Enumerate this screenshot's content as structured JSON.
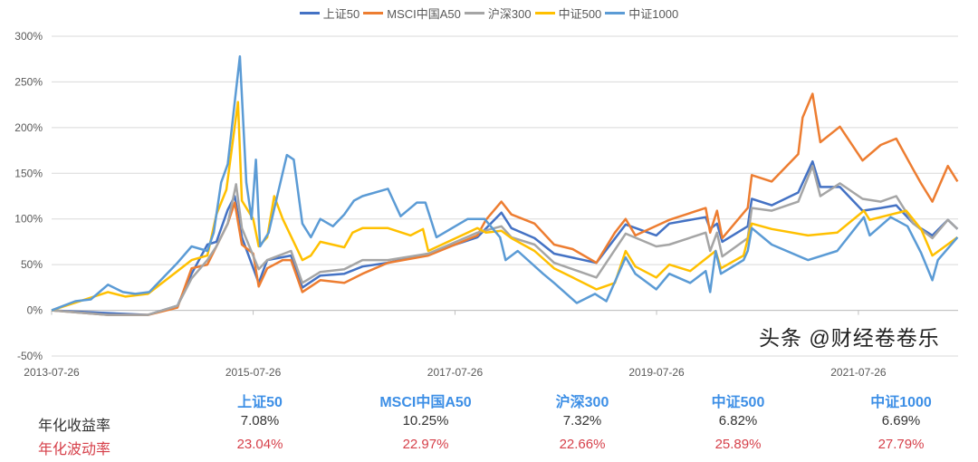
{
  "chart_data": {
    "type": "line",
    "ylim": [
      -50,
      300
    ],
    "yticks": [
      -50,
      0,
      50,
      100,
      150,
      200,
      250,
      300
    ],
    "ytick_labels": [
      "-50%",
      "0%",
      "50%",
      "100%",
      "150%",
      "200%",
      "250%",
      "300%"
    ],
    "xlim": [
      "2013-07-26",
      "2022-07-22"
    ],
    "xtick_labels": [
      "2013-07-26",
      "2015-07-26",
      "2017-07-26",
      "2019-07-26",
      "2021-07-26"
    ],
    "grid": true,
    "legend_placement": "top",
    "series": [
      {
        "name": "上证50",
        "color": "#4472C4",
        "points": [
          [
            "2013-07-26",
            0
          ],
          [
            "2014-02-15",
            -3
          ],
          [
            "2014-07-10",
            -5
          ],
          [
            "2014-10-25",
            5
          ],
          [
            "2014-12-15",
            40
          ],
          [
            "2015-02-10",
            72
          ],
          [
            "2015-03-15",
            75
          ],
          [
            "2015-04-25",
            110
          ],
          [
            "2015-05-20",
            125
          ],
          [
            "2015-06-15",
            80
          ],
          [
            "2015-08-15",
            30
          ],
          [
            "2015-09-15",
            55
          ],
          [
            "2015-12-10",
            60
          ],
          [
            "2016-01-20",
            25
          ],
          [
            "2016-03-25",
            38
          ],
          [
            "2016-06-20",
            40
          ],
          [
            "2016-08-25",
            48
          ],
          [
            "2016-11-25",
            52
          ],
          [
            "2017-04-20",
            62
          ],
          [
            "2017-10-15",
            80
          ],
          [
            "2018-01-10",
            107
          ],
          [
            "2018-02-15",
            90
          ],
          [
            "2018-05-10",
            79
          ],
          [
            "2018-07-20",
            62
          ],
          [
            "2018-12-20",
            52
          ],
          [
            "2019-04-05",
            94
          ],
          [
            "2019-07-25",
            82
          ],
          [
            "2019-09-10",
            95
          ],
          [
            "2020-01-20",
            102
          ],
          [
            "2020-02-05",
            89
          ],
          [
            "2020-03-01",
            95
          ],
          [
            "2020-03-20",
            75
          ],
          [
            "2020-06-20",
            92
          ],
          [
            "2020-07-05",
            122
          ],
          [
            "2020-09-15",
            115
          ],
          [
            "2020-12-20",
            129
          ],
          [
            "2021-02-10",
            163
          ],
          [
            "2021-03-10",
            135
          ],
          [
            "2021-05-20",
            135
          ],
          [
            "2021-08-10",
            109
          ],
          [
            "2021-10-15",
            112
          ],
          [
            "2021-12-10",
            115
          ],
          [
            "2022-02-10",
            95
          ],
          [
            "2022-04-20",
            82
          ],
          [
            "2022-06-15",
            99
          ],
          [
            "2022-07-20",
            89
          ]
        ]
      },
      {
        "name": "MSCI中国A50",
        "color": "#ED7D31",
        "points": [
          [
            "2013-07-26",
            0
          ],
          [
            "2014-02-15",
            -5
          ],
          [
            "2014-07-10",
            -5
          ],
          [
            "2014-10-25",
            3
          ],
          [
            "2014-12-15",
            46
          ],
          [
            "2015-02-10",
            50
          ],
          [
            "2015-03-15",
            70
          ],
          [
            "2015-04-25",
            95
          ],
          [
            "2015-05-20",
            118
          ],
          [
            "2015-06-15",
            72
          ],
          [
            "2015-07-26",
            62
          ],
          [
            "2015-08-15",
            26
          ],
          [
            "2015-09-15",
            46
          ],
          [
            "2015-11-10",
            55
          ],
          [
            "2015-12-10",
            55
          ],
          [
            "2016-01-20",
            20
          ],
          [
            "2016-03-25",
            33
          ],
          [
            "2016-06-20",
            30
          ],
          [
            "2016-08-25",
            40
          ],
          [
            "2016-11-25",
            52
          ],
          [
            "2017-04-20",
            60
          ],
          [
            "2017-10-15",
            82
          ],
          [
            "2017-11-15",
            99
          ],
          [
            "2018-01-10",
            119
          ],
          [
            "2018-02-15",
            105
          ],
          [
            "2018-05-10",
            95
          ],
          [
            "2018-07-20",
            72
          ],
          [
            "2018-09-25",
            67
          ],
          [
            "2018-12-20",
            52
          ],
          [
            "2019-02-25",
            85
          ],
          [
            "2019-04-05",
            100
          ],
          [
            "2019-05-10",
            82
          ],
          [
            "2019-09-10",
            99
          ],
          [
            "2020-01-20",
            112
          ],
          [
            "2020-02-05",
            85
          ],
          [
            "2020-03-01",
            109
          ],
          [
            "2020-03-20",
            79
          ],
          [
            "2020-06-20",
            112
          ],
          [
            "2020-07-05",
            148
          ],
          [
            "2020-09-15",
            141
          ],
          [
            "2020-12-20",
            171
          ],
          [
            "2021-01-05",
            211
          ],
          [
            "2021-02-10",
            237
          ],
          [
            "2021-03-10",
            184
          ],
          [
            "2021-05-20",
            201
          ],
          [
            "2021-08-10",
            164
          ],
          [
            "2021-10-15",
            181
          ],
          [
            "2021-12-10",
            188
          ],
          [
            "2022-02-10",
            154
          ],
          [
            "2022-03-10",
            139
          ],
          [
            "2022-04-20",
            119
          ],
          [
            "2022-06-15",
            158
          ],
          [
            "2022-07-20",
            141
          ]
        ]
      },
      {
        "name": "沪深300",
        "color": "#A5A5A5",
        "points": [
          [
            "2013-07-26",
            0
          ],
          [
            "2014-02-15",
            -5
          ],
          [
            "2014-07-10",
            -5
          ],
          [
            "2014-10-25",
            5
          ],
          [
            "2014-12-15",
            35
          ],
          [
            "2015-02-10",
            55
          ],
          [
            "2015-03-15",
            70
          ],
          [
            "2015-04-25",
            95
          ],
          [
            "2015-05-25",
            138
          ],
          [
            "2015-06-15",
            90
          ],
          [
            "2015-08-15",
            45
          ],
          [
            "2015-09-15",
            55
          ],
          [
            "2015-12-10",
            65
          ],
          [
            "2016-01-20",
            30
          ],
          [
            "2016-03-25",
            42
          ],
          [
            "2016-06-20",
            45
          ],
          [
            "2016-08-25",
            55
          ],
          [
            "2016-11-25",
            55
          ],
          [
            "2017-04-20",
            62
          ],
          [
            "2017-10-15",
            85
          ],
          [
            "2018-01-10",
            92
          ],
          [
            "2018-02-15",
            80
          ],
          [
            "2018-05-10",
            72
          ],
          [
            "2018-07-20",
            52
          ],
          [
            "2018-12-20",
            36
          ],
          [
            "2019-04-05",
            84
          ],
          [
            "2019-07-25",
            70
          ],
          [
            "2019-09-10",
            72
          ],
          [
            "2020-01-20",
            85
          ],
          [
            "2020-02-05",
            65
          ],
          [
            "2020-03-01",
            85
          ],
          [
            "2020-03-20",
            59
          ],
          [
            "2020-06-20",
            79
          ],
          [
            "2020-07-05",
            112
          ],
          [
            "2020-09-15",
            109
          ],
          [
            "2020-12-20",
            119
          ],
          [
            "2021-02-10",
            158
          ],
          [
            "2021-03-10",
            125
          ],
          [
            "2021-05-20",
            139
          ],
          [
            "2021-08-10",
            122
          ],
          [
            "2021-10-15",
            119
          ],
          [
            "2021-12-10",
            125
          ],
          [
            "2022-02-10",
            95
          ],
          [
            "2022-04-20",
            79
          ],
          [
            "2022-06-15",
            99
          ],
          [
            "2022-07-20",
            89
          ]
        ]
      },
      {
        "name": "中证500",
        "color": "#FFC000",
        "points": [
          [
            "2013-07-26",
            0
          ],
          [
            "2014-02-15",
            20
          ],
          [
            "2014-04-20",
            15
          ],
          [
            "2014-07-10",
            18
          ],
          [
            "2014-10-25",
            43
          ],
          [
            "2014-12-15",
            55
          ],
          [
            "2015-02-10",
            60
          ],
          [
            "2015-03-15",
            105
          ],
          [
            "2015-04-20",
            132
          ],
          [
            "2015-06-01",
            228
          ],
          [
            "2015-06-15",
            120
          ],
          [
            "2015-07-26",
            100
          ],
          [
            "2015-08-15",
            70
          ],
          [
            "2015-09-15",
            80
          ],
          [
            "2015-10-10",
            125
          ],
          [
            "2015-11-10",
            100
          ],
          [
            "2016-01-20",
            55
          ],
          [
            "2016-02-20",
            60
          ],
          [
            "2016-03-25",
            75
          ],
          [
            "2016-06-20",
            69
          ],
          [
            "2016-07-20",
            85
          ],
          [
            "2016-08-25",
            90
          ],
          [
            "2016-11-25",
            90
          ],
          [
            "2017-02-15",
            82
          ],
          [
            "2017-04-01",
            89
          ],
          [
            "2017-04-20",
            65
          ],
          [
            "2017-10-15",
            90
          ],
          [
            "2017-11-15",
            85
          ],
          [
            "2018-01-10",
            87
          ],
          [
            "2018-02-15",
            79
          ],
          [
            "2018-05-10",
            65
          ],
          [
            "2018-07-20",
            46
          ],
          [
            "2018-09-25",
            36
          ],
          [
            "2018-12-20",
            23
          ],
          [
            "2019-02-25",
            30
          ],
          [
            "2019-04-05",
            65
          ],
          [
            "2019-05-10",
            48
          ],
          [
            "2019-07-25",
            36
          ],
          [
            "2019-09-10",
            50
          ],
          [
            "2019-11-25",
            43
          ],
          [
            "2020-02-25",
            65
          ],
          [
            "2020-03-15",
            46
          ],
          [
            "2020-06-05",
            60
          ],
          [
            "2020-07-05",
            95
          ],
          [
            "2020-09-15",
            89
          ],
          [
            "2021-01-25",
            82
          ],
          [
            "2021-05-10",
            85
          ],
          [
            "2021-08-15",
            109
          ],
          [
            "2021-09-05",
            99
          ],
          [
            "2022-01-15",
            109
          ],
          [
            "2022-03-10",
            89
          ],
          [
            "2022-04-20",
            60
          ],
          [
            "2022-07-20",
            80
          ]
        ]
      },
      {
        "name": "中证1000",
        "color": "#5B9BD5",
        "points": [
          [
            "2013-07-26",
            0
          ],
          [
            "2013-10-20",
            10
          ],
          [
            "2013-12-15",
            12
          ],
          [
            "2014-02-15",
            28
          ],
          [
            "2014-04-10",
            20
          ],
          [
            "2014-05-25",
            18
          ],
          [
            "2014-07-15",
            20
          ],
          [
            "2014-10-25",
            52
          ],
          [
            "2014-12-15",
            70
          ],
          [
            "2015-02-10",
            65
          ],
          [
            "2015-03-05",
            85
          ],
          [
            "2015-04-01",
            140
          ],
          [
            "2015-04-25",
            160
          ],
          [
            "2015-06-08",
            278
          ],
          [
            "2015-07-01",
            140
          ],
          [
            "2015-07-20",
            100
          ],
          [
            "2015-08-05",
            165
          ],
          [
            "2015-08-20",
            70
          ],
          [
            "2015-09-20",
            85
          ],
          [
            "2015-10-25",
            130
          ],
          [
            "2015-11-25",
            170
          ],
          [
            "2015-12-20",
            165
          ],
          [
            "2016-01-20",
            95
          ],
          [
            "2016-02-20",
            80
          ],
          [
            "2016-03-25",
            100
          ],
          [
            "2016-05-10",
            92
          ],
          [
            "2016-06-20",
            105
          ],
          [
            "2016-07-25",
            120
          ],
          [
            "2016-08-25",
            125
          ],
          [
            "2016-11-25",
            133
          ],
          [
            "2017-01-10",
            103
          ],
          [
            "2017-03-10",
            118
          ],
          [
            "2017-04-10",
            118
          ],
          [
            "2017-05-20",
            80
          ],
          [
            "2017-09-10",
            100
          ],
          [
            "2017-11-10",
            100
          ],
          [
            "2018-01-05",
            80
          ],
          [
            "2018-01-25",
            55
          ],
          [
            "2018-03-10",
            65
          ],
          [
            "2018-06-10",
            40
          ],
          [
            "2018-07-20",
            30
          ],
          [
            "2018-10-10",
            8
          ],
          [
            "2018-12-15",
            18
          ],
          [
            "2019-01-25",
            10
          ],
          [
            "2019-04-05",
            58
          ],
          [
            "2019-05-10",
            40
          ],
          [
            "2019-07-25",
            23
          ],
          [
            "2019-09-10",
            40
          ],
          [
            "2019-11-25",
            30
          ],
          [
            "2020-01-20",
            43
          ],
          [
            "2020-02-05",
            20
          ],
          [
            "2020-02-25",
            65
          ],
          [
            "2020-03-15",
            40
          ],
          [
            "2020-06-05",
            55
          ],
          [
            "2020-06-20",
            65
          ],
          [
            "2020-07-05",
            90
          ],
          [
            "2020-09-15",
            72
          ],
          [
            "2021-01-25",
            55
          ],
          [
            "2021-05-10",
            65
          ],
          [
            "2021-08-15",
            102
          ],
          [
            "2021-09-05",
            82
          ],
          [
            "2021-11-20",
            102
          ],
          [
            "2022-01-20",
            92
          ],
          [
            "2022-03-10",
            63
          ],
          [
            "2022-04-20",
            33
          ],
          [
            "2022-05-10",
            55
          ],
          [
            "2022-07-20",
            80
          ]
        ]
      }
    ]
  },
  "table": {
    "headers": [
      "上证50",
      "MSCI中国A50",
      "沪深300",
      "中证500",
      "中证1000"
    ],
    "rows": [
      {
        "label": "年化收益率",
        "values": [
          "7.08%",
          "10.25%",
          "7.32%",
          "6.82%",
          "6.69%"
        ]
      },
      {
        "label": "年化波动率",
        "values": [
          "23.04%",
          "22.97%",
          "22.66%",
          "25.89%",
          "27.79%"
        ]
      }
    ]
  },
  "watermark": "头条 @财经卷卷乐"
}
